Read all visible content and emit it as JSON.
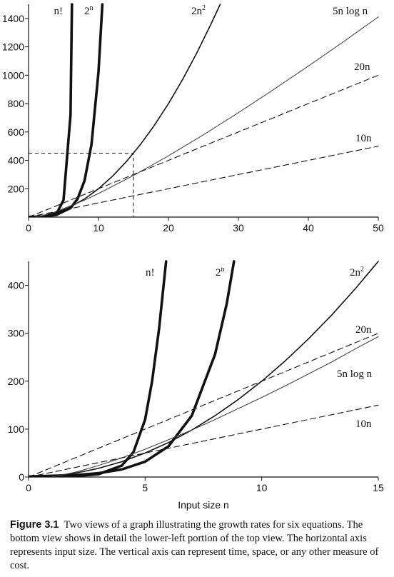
{
  "caption": {
    "figure_label": "Figure 3.1",
    "text": "Two views of a graph illustrating the growth rates for six equations. The bottom view shows in detail the lower-left portion of the top view. The horizontal axis represents input size. The vertical axis can represent time, space, or any other measure of cost."
  },
  "chart_data": [
    {
      "type": "line",
      "title": "",
      "xlabel": "",
      "ylabel": "",
      "xlim": [
        0,
        50
      ],
      "ylim": [
        0,
        1500
      ],
      "x_ticks": [
        "0",
        "10",
        "20",
        "30",
        "40",
        "50"
      ],
      "y_ticks": [
        "200",
        "400",
        "600",
        "800",
        "1000",
        "1200",
        "1400"
      ],
      "grid": false,
      "inset_box": {
        "x": [
          0,
          15
        ],
        "y": [
          0,
          450
        ]
      },
      "series": [
        {
          "name": "n!",
          "style": "bold",
          "x": [
            1,
            2,
            3,
            4,
            5,
            6,
            6.2
          ],
          "y": [
            1,
            2,
            6,
            24,
            120,
            720,
            1500
          ]
        },
        {
          "name": "2^n",
          "style": "bold",
          "x": [
            0,
            2,
            4,
            6,
            7,
            8,
            9,
            10,
            10.55
          ],
          "y": [
            1,
            4,
            16,
            64,
            128,
            256,
            512,
            1024,
            1500
          ]
        },
        {
          "name": "2n^2",
          "style": "solid",
          "x": [
            0,
            2,
            4,
            6,
            8,
            10,
            12,
            14,
            16,
            18,
            20,
            22,
            24,
            26,
            27.4
          ],
          "y": [
            0,
            8,
            32,
            72,
            128,
            200,
            288,
            392,
            512,
            648,
            800,
            968,
            1152,
            1352,
            1500
          ]
        },
        {
          "name": "5n log n",
          "style": "thin",
          "x": [
            1,
            2,
            4,
            8,
            10,
            15,
            20,
            25,
            30,
            35,
            40,
            45,
            50
          ],
          "y": [
            0,
            10,
            40,
            120,
            166,
            293,
            432,
            580,
            736,
            898,
            1064,
            1235,
            1411
          ]
        },
        {
          "name": "20n",
          "style": "dashed",
          "x": [
            0,
            50
          ],
          "y": [
            0,
            1000
          ]
        },
        {
          "name": "10n",
          "style": "dashed",
          "x": [
            0,
            50
          ],
          "y": [
            0,
            500
          ]
        }
      ]
    },
    {
      "type": "line",
      "title": "",
      "xlabel": "Input size  n",
      "ylabel": "",
      "xlim": [
        0,
        15
      ],
      "ylim": [
        0,
        450
      ],
      "x_ticks": [
        "0",
        "5",
        "10",
        "15"
      ],
      "y_ticks": [
        "0",
        "100",
        "200",
        "300",
        "400"
      ],
      "grid": false,
      "series": [
        {
          "name": "n!",
          "style": "bold",
          "x": [
            1,
            2,
            3,
            4,
            4.5,
            5,
            5.3,
            5.6,
            5.9
          ],
          "y": [
            1,
            2,
            6,
            24,
            52,
            120,
            200,
            310,
            450
          ]
        },
        {
          "name": "2^n",
          "style": "bold",
          "x": [
            0,
            2,
            3,
            4,
            5,
            6,
            7,
            8,
            8.5,
            8.81
          ],
          "y": [
            1,
            4,
            8,
            16,
            32,
            64,
            128,
            256,
            362,
            450
          ]
        },
        {
          "name": "2n^2",
          "style": "solid",
          "x": [
            0,
            1,
            2,
            3,
            4,
            5,
            6,
            7,
            8,
            9,
            10,
            11,
            12,
            13,
            14,
            15
          ],
          "y": [
            0,
            2,
            8,
            18,
            32,
            50,
            72,
            98,
            128,
            162,
            200,
            242,
            288,
            338,
            392,
            450
          ]
        },
        {
          "name": "5n log n",
          "style": "thin",
          "x": [
            1,
            2,
            3,
            4,
            5,
            6,
            7,
            8,
            9,
            10,
            11,
            12,
            13,
            14,
            15
          ],
          "y": [
            0,
            10,
            24,
            40,
            58,
            78,
            98,
            120,
            143,
            166,
            190,
            215,
            240,
            267,
            293
          ]
        },
        {
          "name": "20n",
          "style": "dashed",
          "x": [
            0,
            15
          ],
          "y": [
            0,
            300
          ]
        },
        {
          "name": "10n",
          "style": "dashed",
          "x": [
            0,
            15
          ],
          "y": [
            0,
            150
          ]
        }
      ]
    }
  ]
}
